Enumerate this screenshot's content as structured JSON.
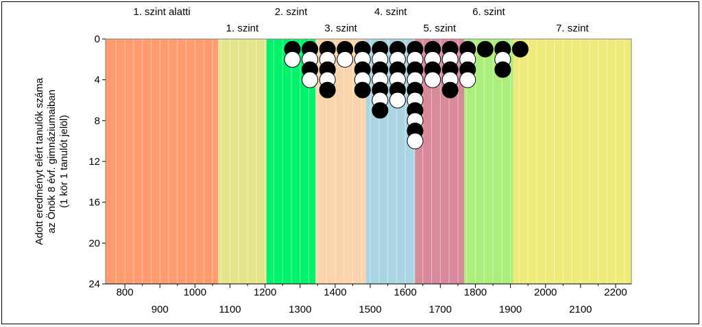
{
  "chart_data": {
    "type": "scatter",
    "title": "",
    "ylabel": [
      "Adott eredményt elért tanulók száma",
      "az Önök 8 évf. gimnáziumaiban",
      "(1 kör 1 tanulót jelöl)"
    ],
    "xlabel": "",
    "xlim": [
      745,
      2245
    ],
    "ylim": [
      0,
      24
    ],
    "y_inverted": true,
    "y_ticks": [
      0,
      4,
      8,
      12,
      16,
      20,
      24
    ],
    "x_ticks_row1": [
      800,
      1000,
      1200,
      1400,
      1600,
      1800,
      2000,
      2200
    ],
    "x_ticks_row2": [
      900,
      1100,
      1300,
      1500,
      1700,
      1900,
      2100
    ],
    "bands": [
      {
        "name": "1. szint alatti",
        "from": 745,
        "to": 1066,
        "color": "#ff9b6e",
        "label_row": 1
      },
      {
        "name": "1. szint",
        "from": 1066,
        "to": 1204,
        "color": "#e6e48a",
        "label_row": 2
      },
      {
        "name": "2. szint",
        "from": 1204,
        "to": 1344,
        "color": "#00f36a",
        "label_row": 1
      },
      {
        "name": "3. szint",
        "from": 1344,
        "to": 1488,
        "color": "#fbd4ad",
        "label_row": 2
      },
      {
        "name": "4. szint",
        "from": 1488,
        "to": 1628,
        "color": "#a9d5e2",
        "label_row": 1
      },
      {
        "name": "5. szint",
        "from": 1628,
        "to": 1768,
        "color": "#d88a9c",
        "label_row": 2
      },
      {
        "name": "6. szint",
        "from": 1768,
        "to": 1908,
        "color": "#acee7b",
        "label_row": 1
      },
      {
        "name": "7. szint",
        "from": 1908,
        "to": 2245,
        "color": "#eeeb7a",
        "label_row": 2
      }
    ],
    "columns": [
      {
        "x": 1278,
        "count": 2
      },
      {
        "x": 1328,
        "count": 4
      },
      {
        "x": 1378,
        "count": 5
      },
      {
        "x": 1428,
        "count": 2
      },
      {
        "x": 1478,
        "count": 5
      },
      {
        "x": 1528,
        "count": 7
      },
      {
        "x": 1578,
        "count": 6
      },
      {
        "x": 1628,
        "count": 10
      },
      {
        "x": 1678,
        "count": 4
      },
      {
        "x": 1728,
        "count": 5
      },
      {
        "x": 1778,
        "count": 4
      },
      {
        "x": 1828,
        "count": 1
      },
      {
        "x": 1878,
        "count": 3
      },
      {
        "x": 1928,
        "count": 1
      }
    ],
    "marker_colors": [
      "#000000",
      "#ffffff"
    ],
    "grid": true
  }
}
